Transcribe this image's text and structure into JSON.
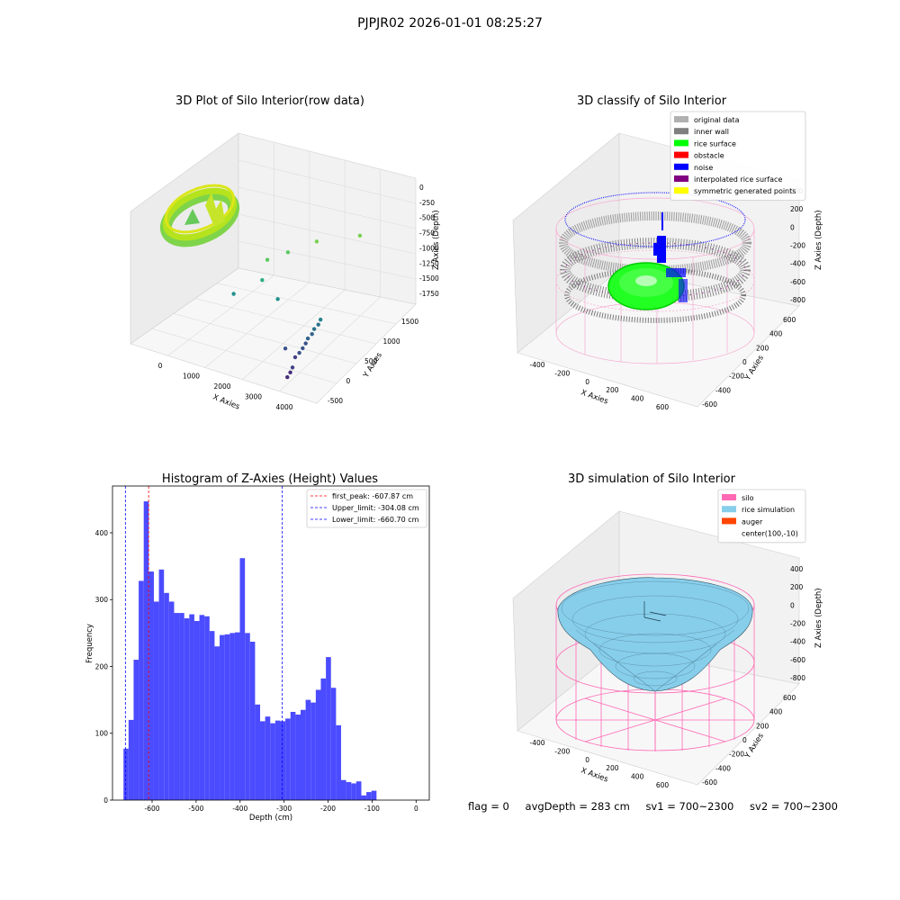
{
  "figure": {
    "suptitle": "PJPJR02 2026-01-01 08:25:27",
    "status": {
      "flag": "flag = 0",
      "avg_depth": "avgDepth = 283 cm",
      "sv1": "sv1 = 700~2300",
      "sv2": "sv2 = 700~2300"
    }
  },
  "colors": {
    "hist_bar": "#4b4bff",
    "first_peak": "#ff0000",
    "limit_lines": "#0000ff",
    "original_data": "#b0b0b0",
    "inner_wall": "#808080",
    "rice_surface": "#00ff00",
    "obstacle": "#ff0000",
    "noise": "#0000ff",
    "interpolated_rice_surface": "#800080",
    "symmetric_generated_points": "#ffff00",
    "silo": "#ff69b4",
    "rice_simulation": "#87ceeb",
    "auger": "#ff4500"
  },
  "chart_data": [
    {
      "type": "scatter",
      "projection": "3d",
      "title": "3D Plot of Silo Interior(row data)",
      "xlabel": "X Axies",
      "ylabel": "Y Axies",
      "zlabel": "Z Axies (Depth)",
      "x_ticks": [
        "0",
        "1000",
        "2000",
        "3000",
        "4000"
      ],
      "y_ticks": [
        "-500",
        "0",
        "500",
        "1000",
        "1500"
      ],
      "z_ticks": [
        "0",
        "-250",
        "-500",
        "-750",
        "-1000",
        "-1250",
        "-1500",
        "-1750"
      ],
      "points": [
        {
          "x": 1900,
          "y": 400,
          "z": -1100
        },
        {
          "x": 2200,
          "y": 600,
          "z": -1050
        },
        {
          "x": 2600,
          "y": 900,
          "z": -1000
        },
        {
          "x": 3500,
          "y": 1100,
          "z": -900
        },
        {
          "x": 2000,
          "y": 200,
          "z": -1300
        },
        {
          "x": 1500,
          "y": 0,
          "z": -1500
        },
        {
          "x": 2400,
          "y": 200,
          "z": -1550
        },
        {
          "x": 3500,
          "y": 200,
          "z": -1700
        },
        {
          "x": 3500,
          "y": 150,
          "z": -1750
        },
        {
          "x": 3450,
          "y": 100,
          "z": -1800
        },
        {
          "x": 3450,
          "y": 50,
          "z": -1850
        },
        {
          "x": 3400,
          "y": 0,
          "z": -1900
        },
        {
          "x": 3400,
          "y": -50,
          "z": -1950
        },
        {
          "x": 3380,
          "y": -100,
          "z": -2000
        },
        {
          "x": 3350,
          "y": -150,
          "z": -2050
        },
        {
          "x": 3300,
          "y": -200,
          "z": -2100
        },
        {
          "x": 3050,
          "y": -200,
          "z": -2000
        },
        {
          "x": 3400,
          "y": -350,
          "z": -2150
        },
        {
          "x": 3400,
          "y": -400,
          "z": -2200
        },
        {
          "x": 3380,
          "y": -450,
          "z": -2250
        }
      ]
    },
    {
      "type": "scatter",
      "projection": "3d",
      "title": "3D classify of Silo Interior",
      "xlabel": "X Axies",
      "ylabel": "Y Axies",
      "zlabel": "Z Axies (Depth)",
      "x_ticks": [
        "-400",
        "-200",
        "0",
        "200",
        "400",
        "600"
      ],
      "y_ticks": [
        "-600",
        "-400",
        "-200",
        "0",
        "200",
        "400",
        "600"
      ],
      "z_ticks": [
        "400",
        "200",
        "0",
        "-200",
        "-400",
        "-600",
        "-800"
      ],
      "z_tick_partial": "00",
      "legend": [
        "original data",
        "inner wall",
        "rice surface",
        "obstacle",
        "noise",
        "interpolated rice surface",
        "symmetric generated points"
      ],
      "legend_loc": "upper right"
    },
    {
      "type": "bar",
      "title": "Histogram of Z-Axies (Height) Values",
      "xlabel": "Depth (cm)",
      "ylabel": "Frequency",
      "xlim": [
        -690,
        30
      ],
      "ylim": [
        0,
        470
      ],
      "x_ticks": [
        -600,
        -500,
        -400,
        -300,
        -200,
        -100,
        0
      ],
      "y_ticks": [
        0,
        100,
        200,
        300,
        400
      ],
      "bin_start": -665,
      "bin_width": 11.5,
      "values": [
        77,
        120,
        210,
        328,
        447,
        342,
        297,
        345,
        310,
        297,
        280,
        280,
        272,
        278,
        268,
        277,
        275,
        253,
        230,
        247,
        248,
        250,
        251,
        362,
        250,
        237,
        143,
        118,
        125,
        115,
        119,
        118,
        122,
        132,
        128,
        135,
        150,
        146,
        165,
        182,
        214,
        168,
        112,
        30,
        27,
        25,
        28,
        7,
        12,
        14
      ],
      "lines": [
        {
          "label": "first_peak: -607.87 cm",
          "x": -607.87,
          "color": "#ff0000"
        },
        {
          "label": "Upper_limit: -304.08 cm",
          "x": -304.08,
          "color": "#0000ff"
        },
        {
          "label": "Lower_limit: -660.70 cm",
          "x": -660.7,
          "color": "#0000ff"
        }
      ],
      "legend_loc": "upper right"
    },
    {
      "type": "surface",
      "projection": "3d",
      "title": "3D simulation of Silo Interior",
      "xlabel": "X Axies",
      "ylabel": "Y Axies",
      "zlabel": "Z Axies (Depth)",
      "x_ticks": [
        "-400",
        "-200",
        "0",
        "200",
        "400",
        "600"
      ],
      "y_ticks": [
        "-600",
        "-400",
        "-200",
        "0",
        "200",
        "400",
        "600"
      ],
      "z_ticks": [
        "400",
        "200",
        "0",
        "-200",
        "-400",
        "-600",
        "-800"
      ],
      "legend": [
        "silo",
        "rice simulation",
        "auger",
        "center(100,-10)"
      ],
      "legend_loc": "upper right"
    }
  ]
}
